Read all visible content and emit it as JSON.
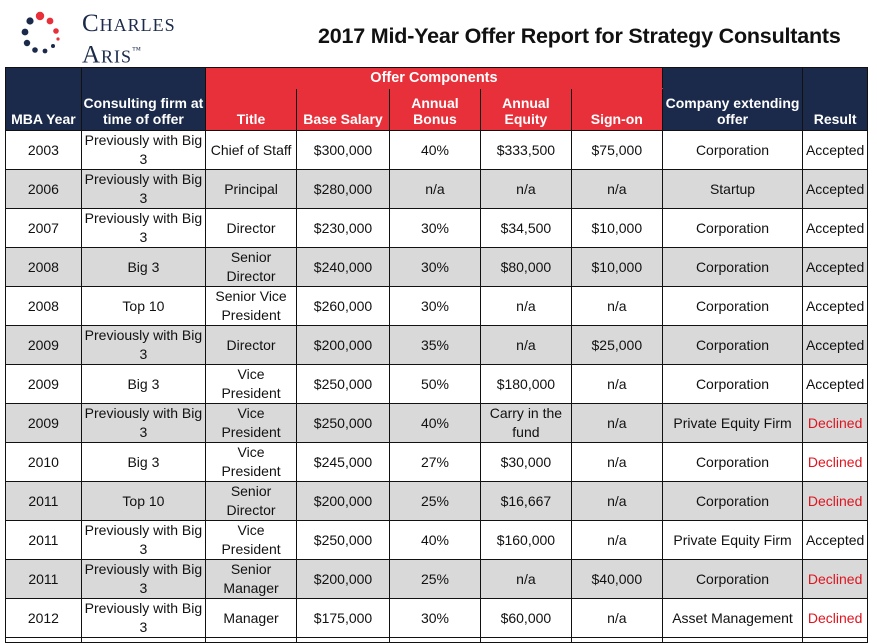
{
  "logo": {
    "line1": "Charles",
    "line2": "Aris",
    "tm": "™"
  },
  "report_title": "2017 Mid-Year Offer Report for Strategy Consultants",
  "colors": {
    "navy": "#1b2a4a",
    "red_header": "#e8303a",
    "alt_row": "#d9d9d9",
    "declined_text": "#e0141e"
  },
  "table": {
    "group_header": "Offer Components",
    "headers": [
      "MBA Year",
      "Consulting firm at time of offer",
      "Title",
      "Base Salary",
      "Annual Bonus",
      "Annual Equity",
      "Sign-on",
      "Company extending offer",
      "Result"
    ],
    "rows": [
      [
        "2003",
        "Previously with Big 3",
        "Chief of Staff",
        "$300,000",
        "40%",
        "$333,500",
        "$75,000",
        "Corporation",
        "Accepted"
      ],
      [
        "2006",
        "Previously with Big 3",
        "Principal",
        "$280,000",
        "n/a",
        "n/a",
        "n/a",
        "Startup",
        "Accepted"
      ],
      [
        "2007",
        "Previously with Big 3",
        "Director",
        "$230,000",
        "30%",
        "$34,500",
        "$10,000",
        "Corporation",
        "Accepted"
      ],
      [
        "2008",
        "Big 3",
        "Senior Director",
        "$240,000",
        "30%",
        "$80,000",
        "$10,000",
        "Corporation",
        "Accepted"
      ],
      [
        "2008",
        "Top 10",
        "Senior Vice President",
        "$260,000",
        "30%",
        "n/a",
        "n/a",
        "Corporation",
        "Accepted"
      ],
      [
        "2009",
        "Previously with Big 3",
        "Director",
        "$200,000",
        "35%",
        "n/a",
        "$25,000",
        "Corporation",
        "Accepted"
      ],
      [
        "2009",
        "Big 3",
        "Vice President",
        "$250,000",
        "50%",
        "$180,000",
        "n/a",
        "Corporation",
        "Accepted"
      ],
      [
        "2009",
        "Previously with Big 3",
        "Vice President",
        "$250,000",
        "40%",
        "Carry in the fund",
        "n/a",
        "Private Equity Firm",
        "Declined"
      ],
      [
        "2010",
        "Big 3",
        "Vice President",
        "$245,000",
        "27%",
        "$30,000",
        "n/a",
        "Corporation",
        "Declined"
      ],
      [
        "2011",
        "Top 10",
        "Senior Director",
        "$200,000",
        "25%",
        "$16,667",
        "n/a",
        "Corporation",
        "Declined"
      ],
      [
        "2011",
        "Previously with Big 3",
        "Vice President",
        "$250,000",
        "40%",
        "$160,000",
        "n/a",
        "Private Equity Firm",
        "Accepted"
      ],
      [
        "2011",
        "Previously with Big 3",
        "Senior Manager",
        "$200,000",
        "25%",
        "n/a",
        "$40,000",
        "Corporation",
        "Declined"
      ],
      [
        "2012",
        "Previously with Big 3",
        "Manager",
        "$175,000",
        "30%",
        "$60,000",
        "n/a",
        "Asset Management",
        "Declined"
      ]
    ]
  }
}
